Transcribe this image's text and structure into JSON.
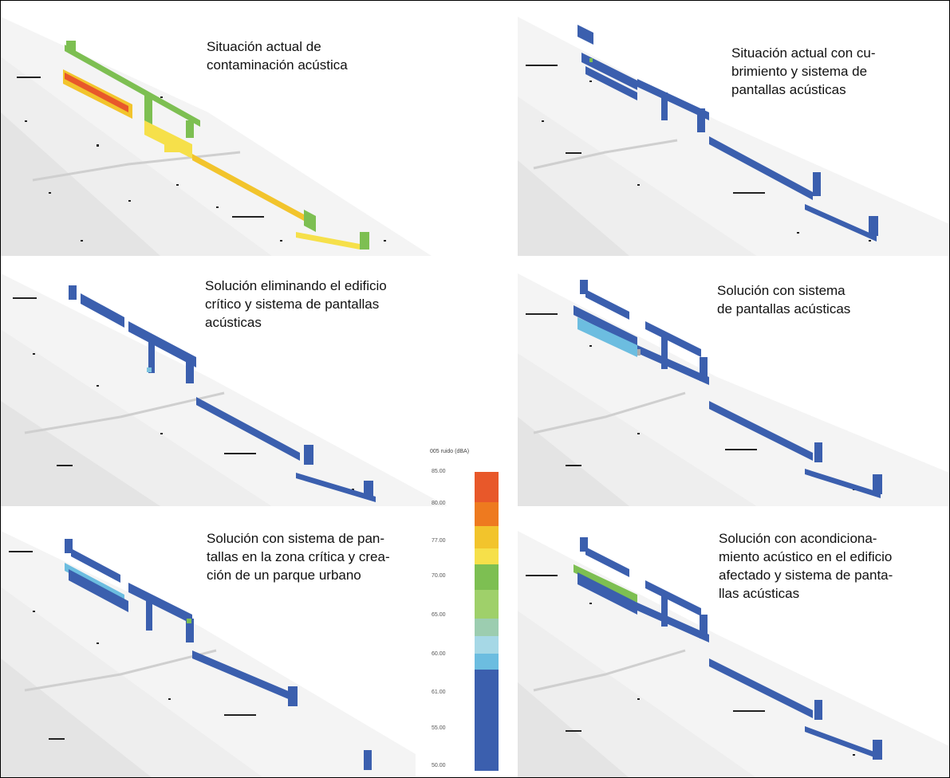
{
  "captions": {
    "panel1": "Situación actual de contaminación acústica",
    "panel2": "Situación actual con cubrimiento y sistema de pantallas acústicas",
    "panel3": "Solución eliminando el edificio crítico y sistema de pantallas acústicas",
    "panel4": "Solución con sistema de pantallas acústicas",
    "panel5": "Solución con sistema de pantallas en la zona crítica y creación de un parque urbano",
    "panel6": "Solución con acondicionamiento acústico en el edificio afectado y sistema de pantallas acústicas"
  },
  "caption_lines": {
    "panel1": [
      "Situación actual de",
      "contaminación acústica"
    ],
    "panel2": [
      "Situación actual con cu-",
      "brimiento y sistema de",
      "pantallas acústicas"
    ],
    "panel3": [
      "Solución eliminando el edificio",
      "crítico y sistema de pantallas",
      "acústicas"
    ],
    "panel4": [
      "Solución con sistema",
      "de pantallas acústicas"
    ],
    "panel5": [
      "Solución con sistema de pan-",
      "tallas en la zona crítica y crea-",
      "ción de un parque urbano"
    ],
    "panel6": [
      "Solución con acondiciona-",
      "miento acústico en el edificio",
      "afectado y sistema de panta-",
      "llas acústicas"
    ]
  },
  "legend": {
    "title": "005 ruido (dBA)",
    "ticks": [
      "85.00",
      "80.00",
      "77.00",
      "70.00",
      "65.00",
      "60.00",
      "61.00",
      "55.00",
      "50.00"
    ],
    "colors": [
      "#e8582a",
      "#ee7a1f",
      "#f2c42c",
      "#f6e04a",
      "#7dbf52",
      "#9fd06a",
      "#9ccdb0",
      "#a6d8e6",
      "#6cbde0",
      "#3b5fae"
    ]
  },
  "colors": {
    "red": "#e8582a",
    "orange": "#ef8a2c",
    "yellow": "#f3d93a",
    "green": "#7cbf58",
    "lightblue": "#7cc3df",
    "blue": "#3b5fae",
    "gray": "#d9d9d9"
  }
}
